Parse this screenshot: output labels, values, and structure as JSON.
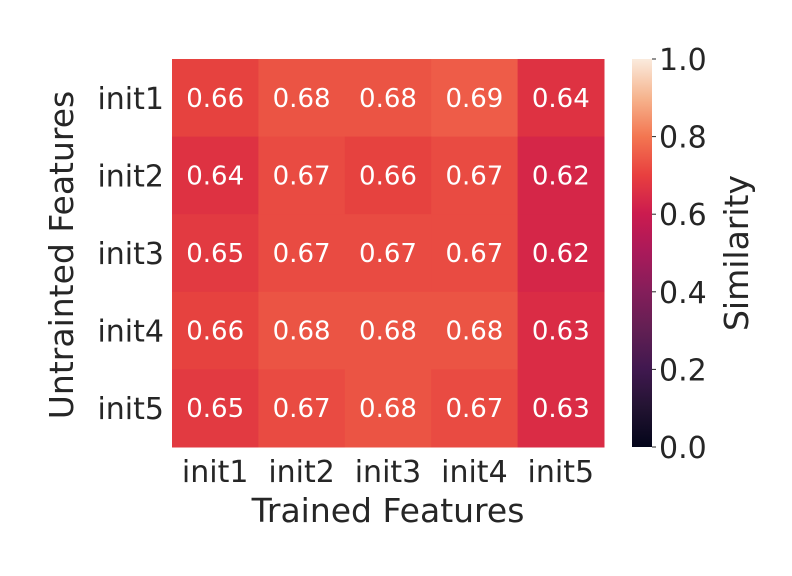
{
  "chart_data": {
    "type": "heatmap",
    "x_categories": [
      "init1",
      "init2",
      "init3",
      "init4",
      "init5"
    ],
    "y_categories": [
      "init1",
      "init2",
      "init3",
      "init4",
      "init5"
    ],
    "values": [
      [
        0.66,
        0.68,
        0.68,
        0.69,
        0.64
      ],
      [
        0.64,
        0.67,
        0.66,
        0.67,
        0.62
      ],
      [
        0.65,
        0.67,
        0.67,
        0.67,
        0.62
      ],
      [
        0.66,
        0.68,
        0.68,
        0.68,
        0.63
      ],
      [
        0.65,
        0.67,
        0.68,
        0.67,
        0.63
      ]
    ],
    "xlabel": "Trained Features",
    "ylabel": "Untrainted Features",
    "colorbar": {
      "label": "Similarity",
      "range": [
        0.0,
        1.0
      ],
      "ticks": [
        "0.0",
        "0.2",
        "0.4",
        "0.6",
        "0.8",
        "1.0"
      ],
      "colormap": "rocket"
    },
    "annotated": true,
    "grid": false
  }
}
